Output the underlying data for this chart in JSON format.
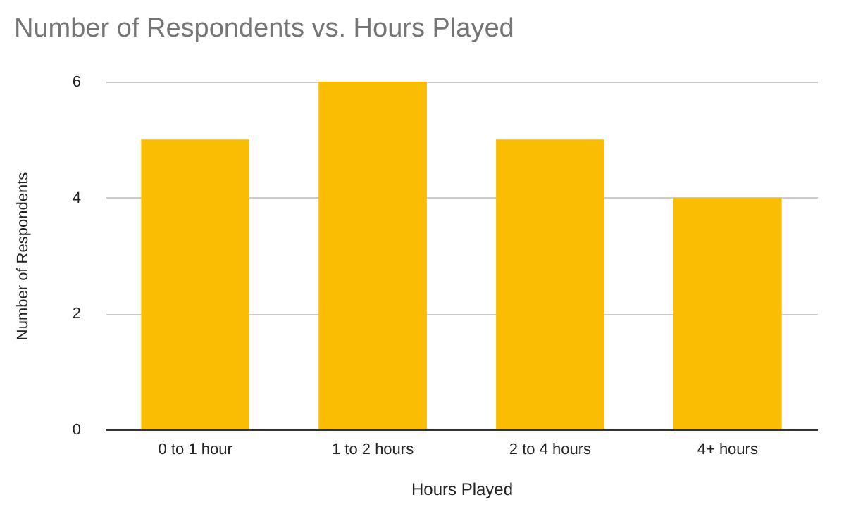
{
  "chart_data": {
    "type": "bar",
    "title": "Number of Respondents vs. Hours Played",
    "xlabel": "Hours Played",
    "ylabel": "Number of Respondents",
    "categories": [
      "0 to 1 hour",
      "1 to 2 hours",
      "2 to 4 hours",
      "4+ hours"
    ],
    "values": [
      5,
      6,
      5,
      4
    ],
    "color": "#fbbc04",
    "ylim": [
      0,
      6
    ],
    "yticks": [
      0,
      2,
      4,
      6
    ],
    "grid": "y"
  }
}
